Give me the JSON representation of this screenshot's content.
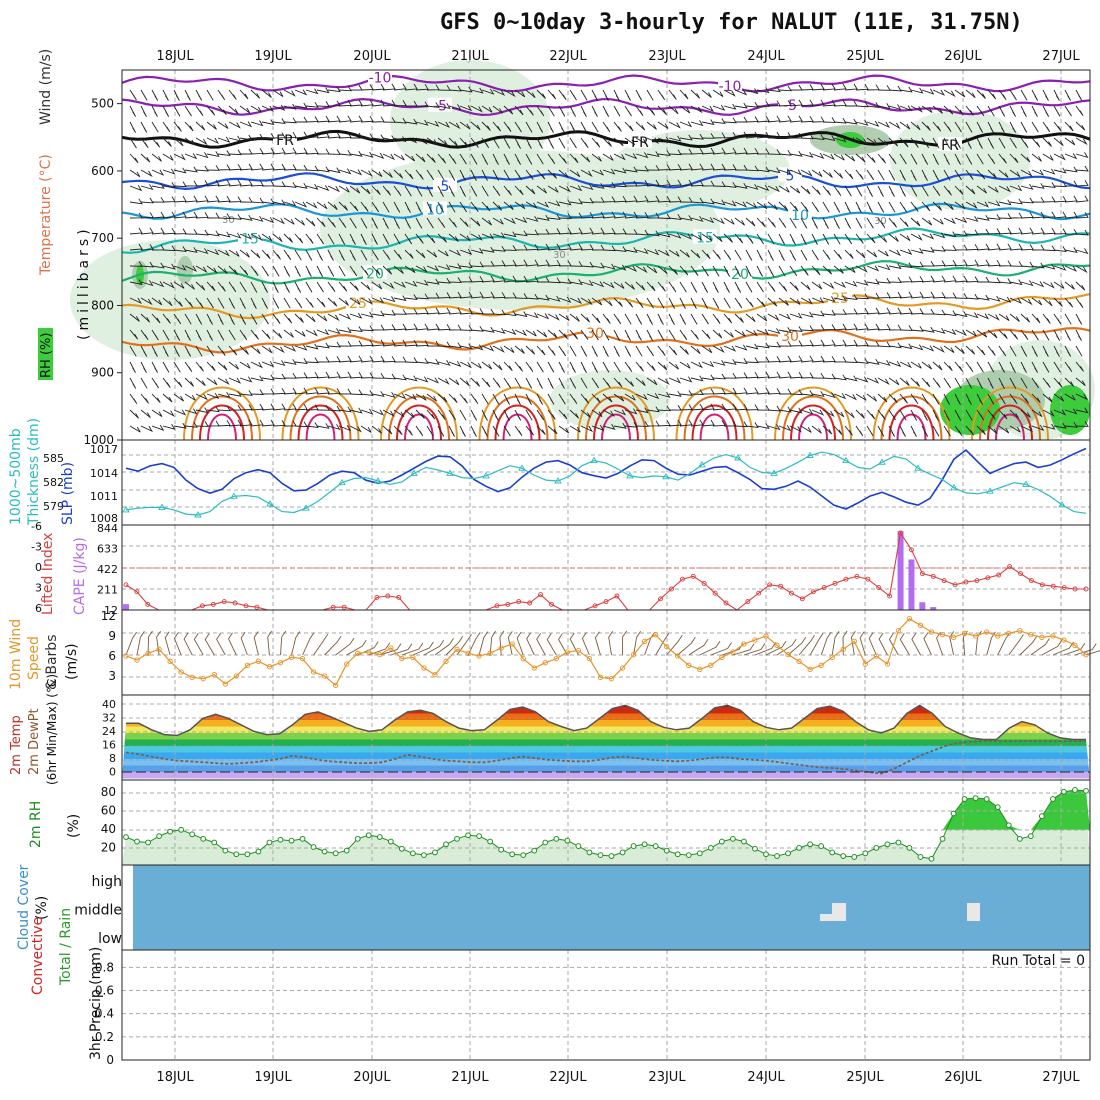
{
  "title": "GFS 0~10day 3-hourly for NALUT (11E, 31.75N)",
  "colors": {
    "purple": "#8a1fb0",
    "black": "#111111",
    "blue": "#1a4fd6",
    "lightblue": "#1a96d6",
    "teal": "#19b5b0",
    "green": "#19b070",
    "orange": "#e39a22",
    "darkorange": "#e0701a",
    "red": "#d92020",
    "rh_shade": "#d8ecd8",
    "rh_mid": "#a9c9a9",
    "rh_bright": "#3ccc3c",
    "slp": "#1a3fcf",
    "thick": "#2bbcc0",
    "cape": "#b46cf0",
    "li": "#d94040",
    "wind": "#e6952a",
    "barb": "#7a5a3a",
    "rh2m": "#1f8f1f",
    "cloud": "#6aaed6",
    "cloud_hole": "#e8e8e8"
  },
  "chart_data": [
    {
      "panel": "upper-air",
      "type": "heatmap",
      "ylabels": [
        "Wind (m/s)",
        "Temperature (°C)",
        "RH (%)",
        "(millibars)"
      ],
      "yticks": [
        500,
        600,
        700,
        800,
        900,
        1000
      ],
      "ylim": [
        450,
        1000
      ],
      "days": [
        "18JUL",
        "19JUL",
        "20JUL",
        "21JUL",
        "22JUL",
        "23JUL",
        "24JUL",
        "25JUL",
        "26JUL",
        "27JUL"
      ],
      "contour_labels": [
        "-10",
        "-5",
        "FR",
        "5",
        "10",
        "15",
        "20",
        "25",
        "30"
      ],
      "rh_label": "30"
    },
    {
      "panel": "slp-thickness",
      "type": "line",
      "ylabels_left": [
        "1000~500mb",
        "Thickness (dm)"
      ],
      "ylabel_right": "SLP (mb)",
      "thickness_ticks": [
        "585",
        "582",
        "579"
      ],
      "slp_ticks": [
        "1017",
        "1014",
        "1011",
        "1008"
      ],
      "slp": [
        1014.2,
        1013.8,
        1014.5,
        1014.8,
        1014.3,
        1012.6,
        1011.5,
        1010.9,
        1011.4,
        1012.8,
        1013.6,
        1014.0,
        1013.6,
        1012.2,
        1011.2,
        1011.3,
        1012.2,
        1013.3,
        1013.8,
        1013.6,
        1012.6,
        1012.2,
        1012.5,
        1013.3,
        1014.2,
        1015.1,
        1015.8,
        1015.7,
        1014.5,
        1012.7,
        1011.8,
        1011.1,
        1011.6,
        1013.0,
        1014.2,
        1015.0,
        1015.2,
        1014.6,
        1013.6,
        1013.2,
        1012.9,
        1013.5,
        1014.5,
        1015.3,
        1015.2,
        1014.2,
        1013.4,
        1013.3,
        1013.8,
        1014.3,
        1014.4,
        1013.6,
        1012.7,
        1011.5,
        1011.4,
        1011.8,
        1012.5,
        1011.7,
        1010.5,
        1009.3,
        1008.8,
        1009.6,
        1010.5,
        1011.0,
        1010.4,
        1009.7,
        1009.3,
        1010.2,
        1012.6,
        1015.4,
        1016.6,
        1015.0,
        1013.5,
        1014.2,
        1014.8,
        1015.0,
        1014.3,
        1014.6,
        1015.3,
        1016.1,
        1016.8
      ],
      "thickness": [
        578.6,
        578.8,
        578.9,
        578.9,
        578.6,
        578.1,
        578.0,
        578.4,
        579.6,
        580.2,
        580.3,
        580.1,
        579.3,
        578.4,
        578.3,
        578.8,
        579.6,
        580.7,
        581.8,
        582.3,
        582.4,
        582.0,
        581.6,
        581.9,
        582.9,
        583.6,
        583.3,
        582.9,
        582.4,
        582.3,
        582.6,
        583.2,
        583.8,
        583.5,
        582.7,
        582.1,
        582.0,
        582.6,
        583.8,
        584.4,
        584.1,
        583.4,
        582.6,
        582.4,
        582.6,
        582.5,
        582.1,
        582.9,
        583.9,
        584.7,
        585.1,
        584.7,
        583.6,
        583.0,
        582.9,
        583.5,
        584.2,
        585.0,
        585.4,
        585.1,
        584.4,
        583.6,
        583.4,
        584.2,
        584.9,
        584.6,
        583.5,
        582.8,
        582.2,
        581.2,
        580.6,
        580.5,
        580.8,
        581.3,
        581.8,
        581.6,
        581.0,
        580.2,
        579.2,
        578.4,
        578.2
      ]
    },
    {
      "panel": "cape-li",
      "type": "bar",
      "ylabels": [
        "Lifted Index",
        "CAPE (J/kg)"
      ],
      "li_ticks": [
        "-6",
        "-3",
        "0",
        "3",
        "6"
      ],
      "cape_ticks": [
        "844",
        "633",
        "422",
        "211",
        "12"
      ],
      "li": [
        2.4,
        3.4,
        5.2,
        6.0,
        6.0,
        6.0,
        6.0,
        5.4,
        5.2,
        4.8,
        5.0,
        5.4,
        5.6,
        6.0,
        6.0,
        6.0,
        6.0,
        6.0,
        6.0,
        5.6,
        5.6,
        6.0,
        6.0,
        4.2,
        4.0,
        4.2,
        6.0,
        6.0,
        6.0,
        6.0,
        6.0,
        6.0,
        6.0,
        6.0,
        5.4,
        5.2,
        4.8,
        5.0,
        3.8,
        5.2,
        6.0,
        6.0,
        6.0,
        5.4,
        4.8,
        4.0,
        6.0,
        6.0,
        6.0,
        4.4,
        3.0,
        1.6,
        1.2,
        2.2,
        3.6,
        5.0,
        6.0,
        4.8,
        3.6,
        2.4,
        2.6,
        3.6,
        4.4,
        3.4,
        2.8,
        2.2,
        1.6,
        1.2,
        1.6,
        2.8,
        4.0,
        -5.0,
        -2.6,
        0.8,
        1.2,
        1.8,
        2.4,
        2.0,
        1.8,
        1.4,
        1.0,
        -0.2,
        0.8,
        1.8,
        2.4,
        2.6,
        2.8,
        3.0,
        3.0
      ],
      "cape": [
        60,
        0,
        0,
        0,
        0,
        0,
        0,
        0,
        0,
        0,
        0,
        0,
        0,
        0,
        0,
        0,
        0,
        0,
        0,
        0,
        0,
        0,
        0,
        0,
        0,
        0,
        0,
        0,
        0,
        0,
        0,
        0,
        0,
        0,
        0,
        0,
        0,
        0,
        0,
        0,
        0,
        0,
        0,
        0,
        0,
        0,
        0,
        0,
        0,
        0,
        0,
        0,
        0,
        0,
        0,
        0,
        0,
        0,
        0,
        0,
        0,
        0,
        0,
        0,
        0,
        0,
        0,
        0,
        0,
        0,
        0,
        810,
        520,
        80,
        30,
        0,
        0,
        0,
        0,
        0,
        0,
        0,
        0,
        0,
        0,
        0,
        0,
        0,
        0
      ]
    },
    {
      "panel": "wind10m",
      "type": "line",
      "ylabels": [
        "10m Wind",
        "Speed",
        "& Barbs",
        "(m/s)"
      ],
      "yticks": [
        "12",
        "9",
        "6",
        "3"
      ],
      "speed": [
        6.0,
        5.4,
        6.4,
        7.0,
        5.2,
        3.6,
        2.8,
        2.6,
        3.2,
        1.8,
        3.0,
        4.6,
        5.2,
        4.4,
        5.0,
        5.8,
        5.6,
        3.6,
        3.0,
        1.6,
        4.8,
        6.4,
        6.6,
        6.2,
        7.2,
        5.6,
        5.8,
        4.2,
        3.2,
        5.2,
        7.0,
        6.4,
        6.0,
        6.4,
        7.2,
        7.8,
        5.6,
        4.2,
        5.0,
        5.6,
        6.6,
        6.8,
        5.6,
        2.8,
        2.6,
        4.2,
        6.2,
        8.2,
        9.2,
        7.4,
        6.0,
        4.6,
        4.0,
        4.6,
        5.8,
        6.6,
        7.8,
        8.4,
        9.0,
        7.6,
        6.2,
        5.2,
        4.0,
        4.6,
        5.8,
        7.0,
        8.2,
        4.8,
        6.0,
        4.8,
        9.8,
        11.6,
        10.6,
        9.6,
        9.2,
        8.8,
        9.4,
        9.0,
        9.6,
        9.0,
        9.4,
        9.8,
        9.2,
        8.8,
        9.0,
        8.4,
        7.6,
        6.2
      ]
    },
    {
      "panel": "temp2m",
      "type": "area",
      "ylabels": [
        "2m Temp",
        "2m DewPt",
        "(6hr Min/Max) (°C)"
      ],
      "yticks": [
        "40",
        "32",
        "24",
        "16",
        "8",
        "0"
      ],
      "temp": [
        30.0,
        30.0,
        26.0,
        23.0,
        22.5,
        26.0,
        33.0,
        35.5,
        33.0,
        29.0,
        25.0,
        23.0,
        23.5,
        29.0,
        35.5,
        37.0,
        34.0,
        30.5,
        27.0,
        25.0,
        26.0,
        32.0,
        37.0,
        38.0,
        36.0,
        31.0,
        27.0,
        25.5,
        26.0,
        32.0,
        38.5,
        40.0,
        37.0,
        31.0,
        28.0,
        25.5,
        27.0,
        33.0,
        39.0,
        41.0,
        38.0,
        31.0,
        27.5,
        26.0,
        27.0,
        33.0,
        39.5,
        41.0,
        38.0,
        31.0,
        27.5,
        26.0,
        27.0,
        33.0,
        39.0,
        40.5,
        37.5,
        31.0,
        26.0,
        24.0,
        27.0,
        36.0,
        41.0,
        36.0,
        28.0,
        24.0,
        21.0,
        20.0,
        20.0,
        27.0,
        31.0,
        29.0,
        24.0,
        21.0,
        20.0,
        20.0
      ],
      "dew": [
        12.0,
        11.0,
        9.5,
        8.0,
        7.0,
        6.5,
        6.0,
        5.5,
        5.0,
        5.5,
        6.0,
        7.0,
        8.0,
        10.0,
        9.0,
        7.5,
        6.5,
        6.0,
        5.5,
        5.5,
        6.0,
        8.0,
        10.5,
        9.5,
        8.0,
        7.0,
        6.5,
        6.0,
        6.0,
        7.0,
        8.5,
        9.5,
        8.5,
        7.5,
        7.0,
        6.5,
        6.5,
        7.5,
        9.0,
        9.5,
        8.5,
        7.5,
        7.0,
        6.5,
        7.0,
        8.0,
        9.0,
        9.0,
        8.0,
        7.5,
        7.0,
        6.0,
        5.0,
        4.0,
        3.0,
        2.5,
        2.0,
        1.0,
        0.0,
        -1.0,
        2.0,
        6.0,
        10.0,
        13.0,
        16.0,
        18.0,
        18.5,
        19.0,
        19.0,
        19.0,
        19.0,
        19.0,
        19.0,
        19.0,
        19.0,
        19.0
      ]
    },
    {
      "panel": "rh2m",
      "type": "area",
      "ylabels": [
        "2m RH",
        "(%)"
      ],
      "yticks": [
        "80",
        "60",
        "40",
        "20"
      ],
      "rh": [
        32,
        27,
        26,
        33,
        38,
        40,
        35,
        30,
        26,
        17,
        13,
        13,
        16,
        26,
        29,
        28,
        30,
        21,
        16,
        14,
        17,
        30,
        34,
        32,
        27,
        19,
        14,
        12,
        15,
        24,
        30,
        34,
        33,
        27,
        18,
        13,
        12,
        17,
        26,
        30,
        28,
        22,
        15,
        12,
        11,
        15,
        22,
        24,
        22,
        17,
        13,
        12,
        14,
        20,
        27,
        30,
        27,
        19,
        13,
        11,
        14,
        20,
        24,
        22,
        15,
        11,
        10,
        14,
        20,
        24,
        26,
        20,
        10,
        8,
        30,
        58,
        74,
        75,
        74,
        65,
        45,
        30,
        33,
        55,
        74,
        82,
        84,
        83
      ]
    },
    {
      "panel": "cloud",
      "type": "heatmap",
      "ylabels": [
        "Cloud Cover",
        "(%)"
      ],
      "rows": [
        "high",
        "middle",
        "low"
      ]
    },
    {
      "panel": "precip",
      "type": "bar",
      "ylabels_left": [
        "Total / Rain",
        "Convective"
      ],
      "ylabel": "3hr Precip (mm)",
      "yticks": [
        "0.8",
        "0.6",
        "0.4",
        "0.2",
        "0"
      ],
      "run_total": "Run Total = 0"
    }
  ]
}
